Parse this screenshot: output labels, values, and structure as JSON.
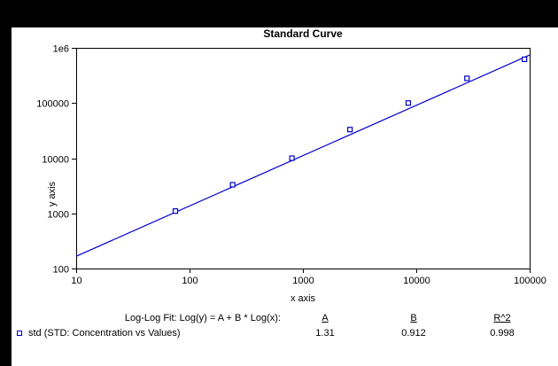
{
  "window": {
    "background_color": "#000000",
    "page_color": "#ffffff"
  },
  "chart": {
    "title": "Standard Curve",
    "x_label": "x axis",
    "y_label": "y axis"
  },
  "chart_data": {
    "type": "scatter",
    "title": "Standard Curve",
    "xlabel": "x axis",
    "ylabel": "y axis",
    "x_scale": "log",
    "y_scale": "log",
    "xlim": [
      10,
      100000
    ],
    "ylim": [
      100,
      1000000
    ],
    "x_ticks": [
      10,
      100,
      1000,
      10000,
      100000
    ],
    "x_tick_labels": [
      "10",
      "100",
      "1000",
      "10000",
      "100000"
    ],
    "y_ticks": [
      100,
      1000,
      10000,
      100000,
      1000000
    ],
    "y_tick_labels": [
      "100",
      "1000",
      "10000",
      "100000",
      "1e6"
    ],
    "grid": false,
    "series": [
      {
        "name": "std",
        "marker": "open-square",
        "color": "#0000cc",
        "x": [
          75,
          240,
          800,
          2600,
          8500,
          28000,
          90000
        ],
        "y": [
          1100,
          3300,
          10000,
          33000,
          100000,
          280000,
          620000
        ]
      }
    ],
    "fit": {
      "type": "log-log-linear",
      "equation": "Log(y) = A + B * Log(x)",
      "A": 1.31,
      "B": 0.912,
      "R2": 0.998,
      "x_range": [
        10,
        100000
      ],
      "color": "#0000cc"
    }
  },
  "annotation": {
    "fit_label": "Log-Log Fit: Log(y) = A + B * Log(x):",
    "col_A": "A",
    "col_B": "B",
    "col_R2": "R^2",
    "value_A": "1.31",
    "value_B": "0.912",
    "value_R2": "0.998",
    "legend_label": "std (STD: Concentration vs Values)",
    "legend_marker": "open-square-icon"
  }
}
